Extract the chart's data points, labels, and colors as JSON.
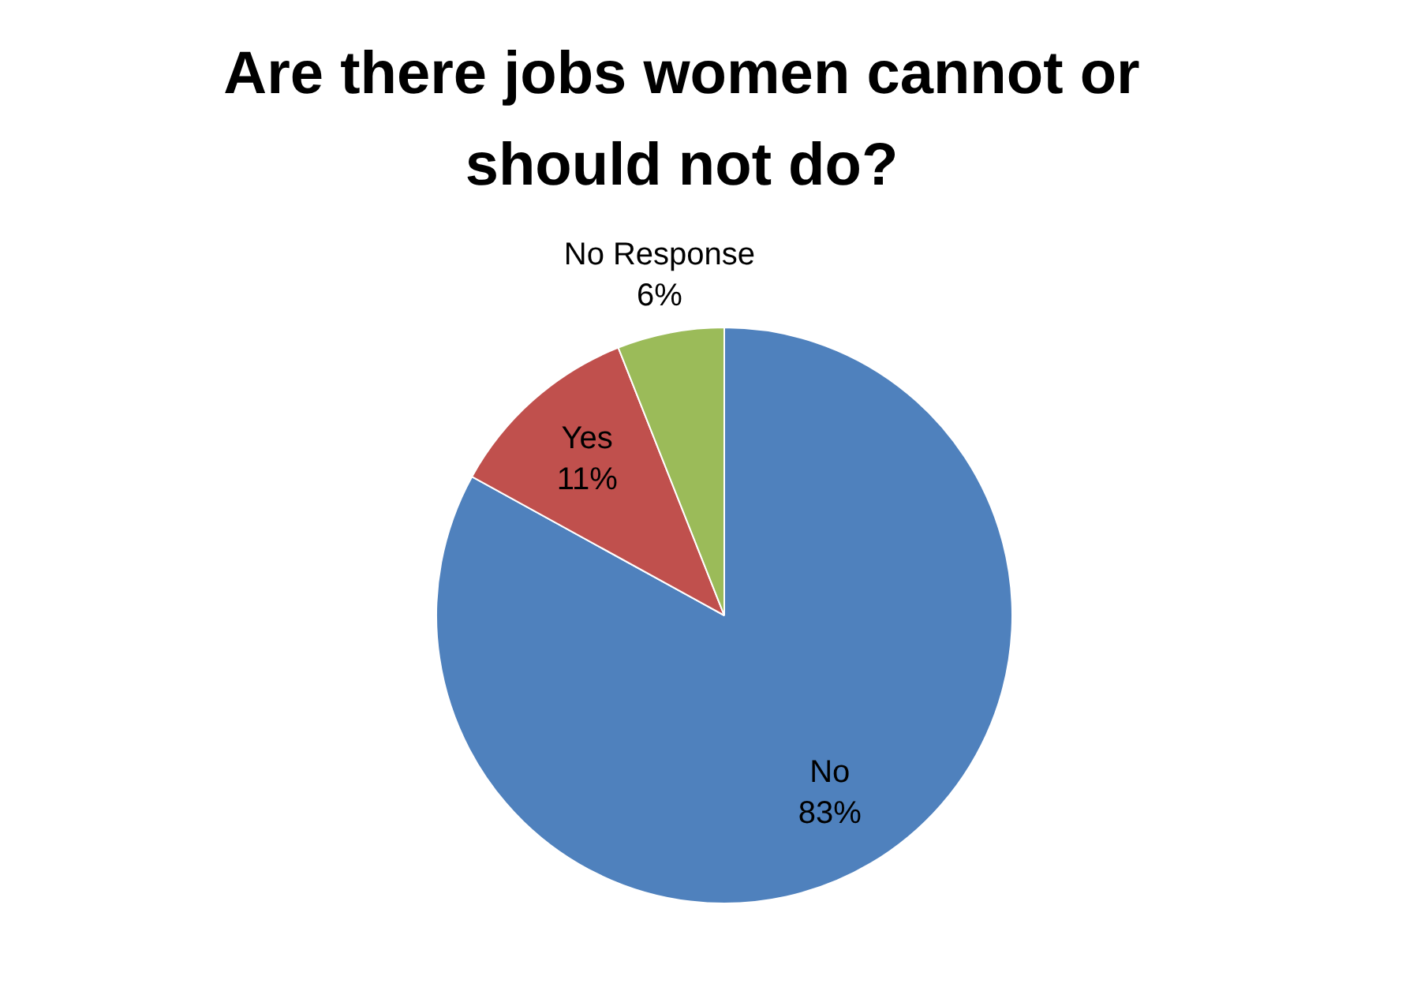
{
  "chart_data": {
    "type": "pie",
    "title": "Are there jobs women cannot or should not do?",
    "categories": [
      "No",
      "Yes",
      "No Response"
    ],
    "values": [
      83,
      11,
      6
    ],
    "value_labels": [
      "83%",
      "11%",
      "6%"
    ],
    "colors": [
      "#4f81bd",
      "#c0504d",
      "#9bbb59"
    ],
    "legend": false
  }
}
